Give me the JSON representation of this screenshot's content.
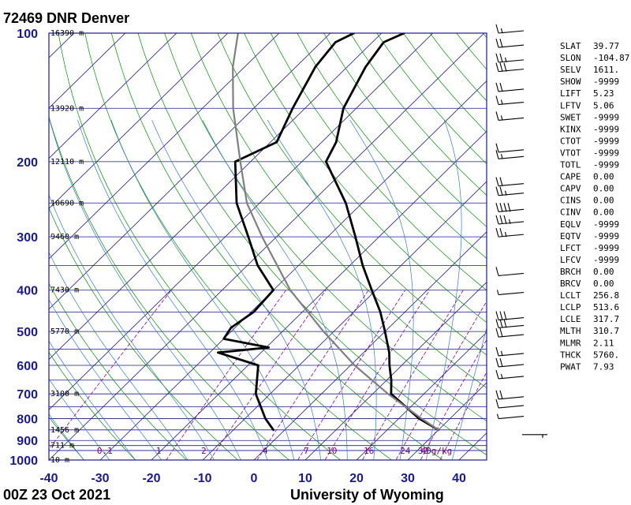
{
  "station_title": "72469 DNR Denver",
  "footer_time": "00Z 23 Oct 2021",
  "footer_source": "University of Wyoming",
  "chart_data": {
    "type": "skew-t",
    "pressure_axis": {
      "ticks": [
        100,
        200,
        300,
        400,
        500,
        600,
        700,
        800,
        900,
        1000
      ],
      "range": [
        1000,
        100
      ],
      "scale": "log"
    },
    "temperature_axis": {
      "ticks": [
        -40,
        -30,
        -20,
        -10,
        0,
        10,
        20,
        30,
        40
      ],
      "range": [
        -40,
        45
      ]
    },
    "isobars_hpa": [
      100,
      150,
      200,
      250,
      300,
      350,
      400,
      450,
      500,
      550,
      600,
      650,
      700,
      750,
      800,
      850,
      900,
      925,
      950,
      1000
    ],
    "height_labels": [
      {
        "p": 100,
        "text": "16390 m"
      },
      {
        "p": 150,
        "text": "13920 m"
      },
      {
        "p": 200,
        "text": "12110 m"
      },
      {
        "p": 250,
        "text": "10690 m"
      },
      {
        "p": 300,
        "text": "9460 m"
      },
      {
        "p": 400,
        "text": "7430 m"
      },
      {
        "p": 500,
        "text": "5770 m"
      },
      {
        "p": 700,
        "text": "3100 m"
      },
      {
        "p": 850,
        "text": "1456 m"
      },
      {
        "p": 925,
        "text": "711 m"
      },
      {
        "p": 1000,
        "text": "10 m"
      }
    ],
    "mixing_ratio_labels": [
      {
        "t": -29.1,
        "text": "0.1"
      },
      {
        "t": -18.6,
        "text": "1"
      },
      {
        "t": -9.8,
        "text": "2"
      },
      {
        "t": 2.2,
        "text": "4"
      },
      {
        "t": 10.2,
        "text": "7"
      },
      {
        "t": 15.2,
        "text": "10"
      },
      {
        "t": 22.4,
        "text": "16"
      },
      {
        "t": 29.5,
        "text": "24"
      },
      {
        "t": 33.0,
        "text": "32"
      },
      {
        "t": 35.6,
        "text": "40g/kg"
      }
    ],
    "series": [
      {
        "role": "temperature",
        "points": [
          {
            "p": 850,
            "t": 30.0
          },
          {
            "p": 800,
            "t": 24.0
          },
          {
            "p": 700,
            "t": 13.6
          },
          {
            "p": 650,
            "t": 10.9
          },
          {
            "p": 600,
            "t": 7.6
          },
          {
            "p": 560,
            "t": 5.0
          },
          {
            "p": 500,
            "t": 0.0
          },
          {
            "p": 450,
            "t": -4.8
          },
          {
            "p": 400,
            "t": -10.8
          },
          {
            "p": 350,
            "t": -17.5
          },
          {
            "p": 300,
            "t": -24.6
          },
          {
            "p": 250,
            "t": -33.2
          },
          {
            "p": 200,
            "t": -45.3
          },
          {
            "p": 180,
            "t": -47.2
          },
          {
            "p": 150,
            "t": -52.5
          },
          {
            "p": 120,
            "t": -56.4
          },
          {
            "p": 105,
            "t": -57.8
          },
          {
            "p": 100,
            "t": -55.6
          }
        ]
      },
      {
        "role": "dewpoint",
        "points": [
          {
            "p": 850,
            "t": -2.2
          },
          {
            "p": 800,
            "t": -6.0
          },
          {
            "p": 700,
            "t": -12.8
          },
          {
            "p": 600,
            "t": -18.0
          },
          {
            "p": 560,
            "t": -28.4
          },
          {
            "p": 545,
            "t": -19.5
          },
          {
            "p": 520,
            "t": -30.0
          },
          {
            "p": 490,
            "t": -30.8
          },
          {
            "p": 450,
            "t": -29.5
          },
          {
            "p": 400,
            "t": -30.0
          },
          {
            "p": 350,
            "t": -38.0
          },
          {
            "p": 300,
            "t": -45.5
          },
          {
            "p": 250,
            "t": -54.5
          },
          {
            "p": 200,
            "t": -63.0
          },
          {
            "p": 180,
            "t": -58.8
          },
          {
            "p": 150,
            "t": -62.4
          },
          {
            "p": 120,
            "t": -66.2
          },
          {
            "p": 105,
            "t": -67.2
          },
          {
            "p": 100,
            "t": -65.4
          }
        ]
      },
      {
        "role": "parcel",
        "points": [
          {
            "p": 850,
            "t": 30.0
          },
          {
            "p": 800,
            "t": 24.5
          },
          {
            "p": 700,
            "t": 13.0
          },
          {
            "p": 600,
            "t": 0.8
          },
          {
            "p": 500,
            "t": -12.0
          },
          {
            "p": 400,
            "t": -26.7
          },
          {
            "p": 300,
            "t": -42.8
          },
          {
            "p": 250,
            "t": -52.5
          },
          {
            "p": 200,
            "t": -62.0
          },
          {
            "p": 150,
            "t": -74.0
          },
          {
            "p": 120,
            "t": -82.3
          },
          {
            "p": 100,
            "t": -88.0
          }
        ]
      }
    ],
    "wind_barbs": [
      {
        "p": 100,
        "knots": 15
      },
      {
        "p": 108,
        "knots": 20
      },
      {
        "p": 117,
        "knots": 25
      },
      {
        "p": 123,
        "knots": 30
      },
      {
        "p": 137,
        "knots": 20
      },
      {
        "p": 147,
        "knots": 15
      },
      {
        "p": 160,
        "knots": 15
      },
      {
        "p": 190,
        "knots": 10
      },
      {
        "p": 197,
        "knots": 15
      },
      {
        "p": 228,
        "knots": 20
      },
      {
        "p": 240,
        "knots": 25
      },
      {
        "p": 262,
        "knots": 40
      },
      {
        "p": 280,
        "knots": 35
      },
      {
        "p": 300,
        "knots": 25
      },
      {
        "p": 370,
        "knots": 10
      },
      {
        "p": 410,
        "knots": 5
      },
      {
        "p": 470,
        "knots": 30
      },
      {
        "p": 490,
        "knots": 30
      },
      {
        "p": 515,
        "knots": 20
      },
      {
        "p": 570,
        "knots": 15
      },
      {
        "p": 605,
        "knots": 20
      },
      {
        "p": 645,
        "knots": 15
      },
      {
        "p": 720,
        "knots": 20
      },
      {
        "p": 755,
        "knots": 10
      },
      {
        "p": 800,
        "knots": 5
      },
      {
        "p": 850,
        "knots": 0
      }
    ]
  },
  "indices": [
    {
      "name": "SLAT",
      "value": "39.77"
    },
    {
      "name": "SLON",
      "value": "-104.87"
    },
    {
      "name": "SELV",
      "value": "1611."
    },
    {
      "name": "SHOW",
      "value": "-9999"
    },
    {
      "name": "LIFT",
      "value": "5.23"
    },
    {
      "name": "LFTV",
      "value": "5.06"
    },
    {
      "name": "SWET",
      "value": "-9999"
    },
    {
      "name": "KINX",
      "value": "-9999"
    },
    {
      "name": "CTOT",
      "value": "-9999"
    },
    {
      "name": "VTOT",
      "value": "-9999"
    },
    {
      "name": "TOTL",
      "value": "-9999"
    },
    {
      "name": "CAPE",
      "value": "0.00"
    },
    {
      "name": "CAPV",
      "value": "0.00"
    },
    {
      "name": "CINS",
      "value": "0.00"
    },
    {
      "name": "CINV",
      "value": "0.00"
    },
    {
      "name": "EQLV",
      "value": "-9999"
    },
    {
      "name": "EQTV",
      "value": "-9999"
    },
    {
      "name": "LFCT",
      "value": "-9999"
    },
    {
      "name": "LFCV",
      "value": "-9999"
    },
    {
      "name": "BRCH",
      "value": "0.00"
    },
    {
      "name": "BRCV",
      "value": "0.00"
    },
    {
      "name": "LCLT",
      "value": "256.8"
    },
    {
      "name": "LCLP",
      "value": "513.6"
    },
    {
      "name": "LCLE",
      "value": "317.7"
    },
    {
      "name": "MLTH",
      "value": "310.7"
    },
    {
      "name": "MLMR",
      "value": "2.11"
    },
    {
      "name": "THCK",
      "value": "5760."
    },
    {
      "name": "PWAT",
      "value": "7.93"
    }
  ],
  "colors": {
    "frame": "#1a1a8a",
    "isotherm": "#1a1a8a",
    "dry_adiabat": "#0a8a0a",
    "moist_adiabat": "#3a7abf",
    "mixing_ratio": "#8a008a",
    "profile": "#000000",
    "parcel": "#7f7f7f"
  }
}
